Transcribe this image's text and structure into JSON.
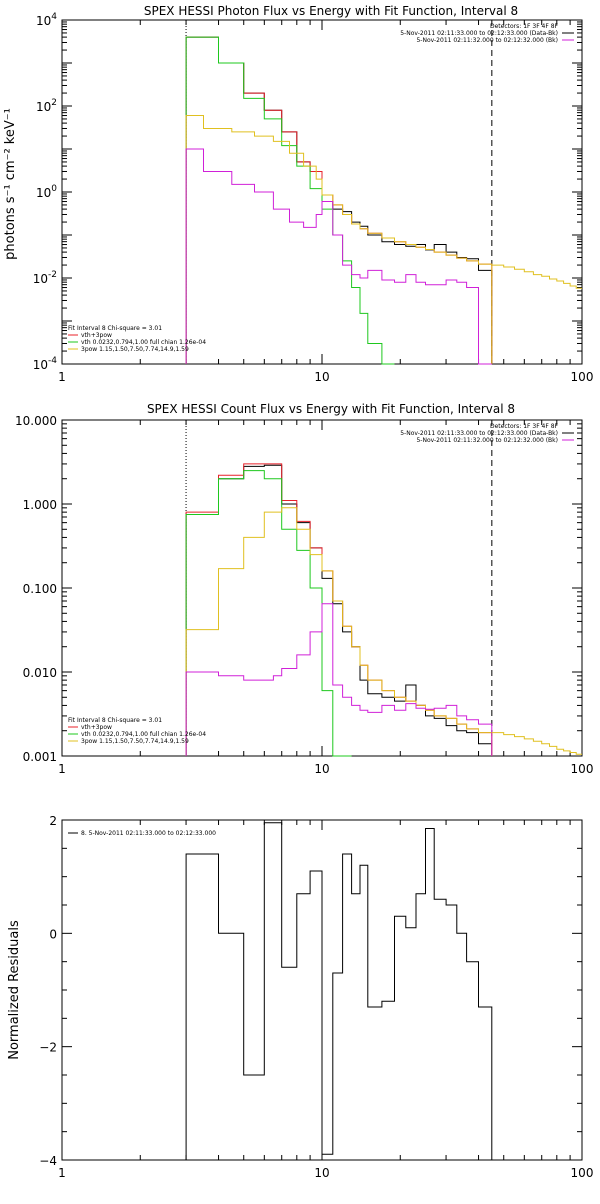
{
  "chart_data": [
    {
      "type": "line",
      "title": "SPEX HESSI Photon Flux vs Energy with Fit Function, Interval 8",
      "ylabel": "photons s⁻¹ cm⁻² keV⁻¹",
      "xscale": "log",
      "yscale": "log",
      "xlim": [
        1,
        100
      ],
      "ylim": [
        0.0001,
        10000
      ],
      "xticks": [
        {
          "v": 1,
          "label": "1"
        },
        {
          "v": 10,
          "label": "10"
        },
        {
          "v": 100,
          "label": "100"
        }
      ],
      "yticks": [
        {
          "v": 0.0001,
          "base": "10",
          "exp": "-4"
        },
        {
          "v": 0.01,
          "base": "10",
          "exp": "-2"
        },
        {
          "v": 1,
          "base": "10",
          "exp": "0"
        },
        {
          "v": 100,
          "base": "10",
          "exp": "2"
        },
        {
          "v": 10000,
          "base": "10",
          "exp": "4"
        }
      ],
      "vlines": [
        {
          "x": 3.0,
          "style": "dotted"
        },
        {
          "x": 45,
          "style": "dashed"
        }
      ],
      "edges": [
        3,
        3.5,
        4,
        4.5,
        5,
        5.5,
        6,
        6.5,
        7,
        7.5,
        8,
        8.5,
        9,
        9.5,
        10,
        11,
        12,
        13,
        14,
        15,
        17,
        19,
        21,
        23,
        25,
        27,
        30,
        33,
        36,
        40,
        45
      ],
      "series": [
        {
          "name": "data",
          "color": "#000000",
          "values": [
            4000,
            4000,
            1000,
            1000,
            200,
            200,
            80,
            80,
            25,
            25,
            5,
            5,
            3,
            3,
            0.6,
            0.4,
            0.35,
            0.2,
            0.16,
            0.1,
            0.07,
            0.06,
            0.055,
            0.06,
            0.045,
            0.06,
            0.04,
            0.03,
            0.028,
            0.015
          ]
        },
        {
          "name": "vth+3pow",
          "color": "#e8202a",
          "values": [
            4000,
            4000,
            1000,
            1000,
            200,
            200,
            80,
            80,
            25,
            25,
            5,
            5,
            3,
            3,
            0.85,
            0.5,
            0.3,
            0.18,
            0.14,
            0.11,
            0.085,
            0.07,
            0.06,
            0.052,
            0.046,
            0.04,
            0.034,
            0.029,
            0.025,
            0.021
          ]
        },
        {
          "name": "vth 0.0232,0.794,1.00  full chian 1.26e-04",
          "color": "#1ec81e",
          "values": [
            4000,
            4000,
            1000,
            1000,
            150,
            150,
            50,
            50,
            12,
            12,
            4,
            4,
            1.2,
            1.2,
            0.4,
            0.1,
            0.025,
            0.006,
            0.0015,
            0.0003,
            0.0001
          ]
        },
        {
          "name": "3pow 1.15,1.50,7.50,7.74,14.9,1.59",
          "color": "#e0c020",
          "values": [
            60,
            30,
            30,
            25,
            25,
            20,
            20,
            15,
            15,
            8,
            8,
            4,
            4,
            2,
            0.85,
            0.5,
            0.3,
            0.18,
            0.14,
            0.11,
            0.085,
            0.07,
            0.06,
            0.052,
            0.046,
            0.04,
            0.034,
            0.029,
            0.025,
            0.021
          ]
        },
        {
          "name": "bkg",
          "color": "#d020d8",
          "values": [
            10,
            3,
            3,
            1.5,
            1.5,
            1,
            1,
            0.4,
            0.4,
            0.2,
            0.2,
            0.15,
            0.15,
            0.3,
            0.6,
            0.1,
            0.02,
            0.012,
            0.01,
            0.015,
            0.009,
            0.008,
            0.012,
            0.008,
            0.007,
            0.007,
            0.009,
            0.008,
            0.006,
            0.0001
          ]
        }
      ],
      "tail": {
        "color": "#e0c020",
        "x": [
          45,
          50,
          55,
          60,
          65,
          70,
          75,
          80,
          85,
          90,
          95,
          100
        ],
        "values": [
          0.02,
          0.018,
          0.016,
          0.014,
          0.012,
          0.011,
          0.0095,
          0.0085,
          0.0075,
          0.0065,
          0.0058,
          0.005
        ]
      },
      "legend_right": [
        {
          "text": "Detectors: 1F 3F 4F 8F",
          "color": ""
        },
        {
          "text": "5-Nov-2011 02:11:33.000 to 02:12:33.000 (Data-Bk)",
          "color": "#000000"
        },
        {
          "text": "5-Nov-2011 02:11:32.000 to 02:12:32.000 (Bk)",
          "color": "#d020d8"
        }
      ],
      "legend_left": [
        {
          "text": "Fit Interval 8   Chi-square = 3.01",
          "color": ""
        },
        {
          "text": "vth+3pow",
          "color": "#e8202a"
        },
        {
          "text": "vth 0.0232,0.794,1.00  full chian 1.26e-04",
          "color": "#1ec81e"
        },
        {
          "text": "3pow 1.15,1.50,7.50,7.74,14.9,1.59",
          "color": "#e0c020"
        }
      ]
    },
    {
      "type": "line",
      "title": "SPEX HESSI Count Flux vs Energy with Fit Function, Interval 8",
      "ylabel": "",
      "xscale": "log",
      "yscale": "log",
      "xlim": [
        1,
        100
      ],
      "ylim": [
        0.001,
        10
      ],
      "xticks": [
        {
          "v": 1,
          "label": "1"
        },
        {
          "v": 10,
          "label": "10"
        },
        {
          "v": 100,
          "label": "100"
        }
      ],
      "yticks": [
        {
          "v": 0.001,
          "label": "0.001"
        },
        {
          "v": 0.01,
          "label": "0.010"
        },
        {
          "v": 0.1,
          "label": "0.100"
        },
        {
          "v": 1,
          "label": "1.000"
        },
        {
          "v": 10,
          "label": "10.000"
        }
      ],
      "vlines": [
        {
          "x": 3.0,
          "style": "dotted"
        },
        {
          "x": 45,
          "style": "dashed"
        }
      ],
      "edges": [
        3,
        3.5,
        4,
        4.5,
        5,
        5.5,
        6,
        6.5,
        7,
        7.5,
        8,
        8.5,
        9,
        9.5,
        10,
        11,
        12,
        13,
        14,
        15,
        17,
        19,
        21,
        23,
        25,
        27,
        30,
        33,
        36,
        40,
        45
      ],
      "series": [
        {
          "name": "data",
          "color": "#000000",
          "values": [
            0.75,
            0.75,
            2.0,
            2.0,
            2.8,
            2.8,
            2.9,
            2.9,
            1.0,
            1.0,
            0.6,
            0.6,
            0.3,
            0.3,
            0.13,
            0.065,
            0.03,
            0.02,
            0.008,
            0.0055,
            0.005,
            0.0045,
            0.007,
            0.004,
            0.003,
            0.0028,
            0.0023,
            0.002,
            0.0019,
            0.0014
          ]
        },
        {
          "name": "vth+3pow",
          "color": "#e8202a",
          "values": [
            0.8,
            0.8,
            2.2,
            2.2,
            3.0,
            3.0,
            3.0,
            3.0,
            1.1,
            1.1,
            0.62,
            0.62,
            0.3,
            0.3,
            0.16,
            0.07,
            0.035,
            0.02,
            0.012,
            0.008,
            0.006,
            0.005,
            0.0045,
            0.004,
            0.0035,
            0.003,
            0.0028,
            0.0024,
            0.0021,
            0.0019
          ]
        },
        {
          "name": "vth 0.0232,0.794,1.00  full chian 1.26e-04",
          "color": "#1ec81e",
          "values": [
            0.75,
            0.75,
            2.0,
            2.0,
            2.5,
            2.5,
            2.0,
            2.0,
            0.5,
            0.5,
            0.28,
            0.28,
            0.1,
            0.1,
            0.006,
            0.001,
            0.0009
          ]
        },
        {
          "name": "3pow 1.15,1.50,7.50,7.74,14.9,1.59",
          "color": "#e0c020",
          "values": [
            0.032,
            0.032,
            0.17,
            0.17,
            0.4,
            0.4,
            0.8,
            0.8,
            0.9,
            0.9,
            0.5,
            0.5,
            0.25,
            0.25,
            0.16,
            0.07,
            0.035,
            0.02,
            0.012,
            0.008,
            0.006,
            0.005,
            0.0045,
            0.004,
            0.0035,
            0.003,
            0.0028,
            0.0024,
            0.0021,
            0.0019
          ]
        },
        {
          "name": "bkg",
          "color": "#d020d8",
          "values": [
            0.01,
            0.01,
            0.009,
            0.009,
            0.008,
            0.008,
            0.008,
            0.009,
            0.011,
            0.011,
            0.016,
            0.016,
            0.03,
            0.03,
            0.065,
            0.007,
            0.005,
            0.004,
            0.0035,
            0.0033,
            0.004,
            0.0035,
            0.0042,
            0.0037,
            0.0036,
            0.0037,
            0.004,
            0.003,
            0.0027,
            0.0024
          ]
        }
      ],
      "tail": {
        "color": "#e0c020",
        "x": [
          45,
          50,
          55,
          60,
          65,
          70,
          75,
          80,
          85,
          90,
          95,
          100
        ],
        "values": [
          0.0019,
          0.0018,
          0.0017,
          0.0016,
          0.0015,
          0.0014,
          0.0013,
          0.0012,
          0.00115,
          0.0011,
          0.00105,
          0.001
        ]
      },
      "legend_right": [
        {
          "text": "Detectors: 1F 3F 4F 8F",
          "color": ""
        },
        {
          "text": "5-Nov-2011 02:11:33.000 to 02:12:33.000 (Data-Bk)",
          "color": "#000000"
        },
        {
          "text": "5-Nov-2011 02:11:32.000 to 02:12:32.000 (Bk)",
          "color": "#d020d8"
        }
      ],
      "legend_left": [
        {
          "text": "Fit Interval 8   Chi-square = 3.01",
          "color": ""
        },
        {
          "text": "vth+3pow",
          "color": "#e8202a"
        },
        {
          "text": "vth 0.0232,0.794,1.00  full chian 1.26e-04",
          "color": "#1ec81e"
        },
        {
          "text": "3pow 1.15,1.50,7.50,7.74,14.9,1.59",
          "color": "#e0c020"
        }
      ]
    },
    {
      "type": "line",
      "title": "",
      "ylabel": "Normalized Residuals",
      "xscale": "log",
      "yscale": "linear",
      "xlim": [
        1,
        100
      ],
      "ylim": [
        -4,
        2
      ],
      "xticks": [
        {
          "v": 1,
          "label": "1"
        },
        {
          "v": 10,
          "label": "10"
        },
        {
          "v": 100,
          "label": "100"
        }
      ],
      "yticks": [
        {
          "v": -4,
          "label": "−4"
        },
        {
          "v": -2,
          "label": "−2"
        },
        {
          "v": 0,
          "label": "0"
        },
        {
          "v": 2,
          "label": "2"
        }
      ],
      "edges": [
        3,
        3.5,
        4,
        4.5,
        5,
        5.5,
        6,
        6.5,
        7,
        7.5,
        8,
        8.5,
        9,
        9.5,
        10,
        11,
        12,
        13,
        14,
        15,
        17,
        19,
        21,
        23,
        25,
        27,
        30,
        33,
        36,
        40,
        45
      ],
      "series": [
        {
          "name": "8. 5-Nov-2011 02:11:33.000 to 02:12:33.000",
          "color": "#000000",
          "values": [
            1.4,
            1.4,
            0.0,
            0.0,
            -2.5,
            -2.5,
            1.95,
            1.95,
            -0.6,
            -0.6,
            0.7,
            0.7,
            1.1,
            1.1,
            -3.9,
            -0.7,
            1.4,
            0.7,
            1.2,
            -1.3,
            -1.2,
            0.3,
            0.1,
            0.7,
            1.85,
            0.6,
            0.5,
            0.0,
            -0.5,
            -1.3
          ]
        }
      ],
      "legend_left": [
        {
          "text": "8. 5-Nov-2011 02:11:33.000 to 02:12:33.000",
          "color": "#000000"
        }
      ]
    }
  ]
}
